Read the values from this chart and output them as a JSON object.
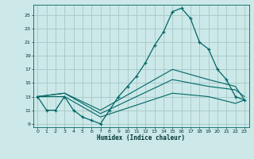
{
  "bg_color": "#cce8e8",
  "grid_color": "#aacccc",
  "line_color": "#006666",
  "xlabel": "Humidex (Indice chaleur)",
  "xlim": [
    -0.5,
    23.5
  ],
  "ylim": [
    8.5,
    26.5
  ],
  "yticks": [
    9,
    11,
    13,
    15,
    17,
    19,
    21,
    23,
    25
  ],
  "xticks": [
    0,
    1,
    2,
    3,
    4,
    5,
    6,
    7,
    8,
    9,
    10,
    11,
    12,
    13,
    14,
    15,
    16,
    17,
    18,
    19,
    20,
    21,
    22,
    23
  ],
  "series_main": {
    "x": [
      0,
      1,
      2,
      3,
      4,
      5,
      6,
      7,
      8,
      9,
      10,
      11,
      12,
      13,
      14,
      15,
      16,
      17,
      18,
      19,
      20,
      21,
      22,
      23
    ],
    "y": [
      13,
      11,
      11,
      13,
      11,
      10,
      9.5,
      9,
      11,
      13,
      14.5,
      16,
      18,
      20.5,
      22.5,
      25.5,
      26,
      24.5,
      21,
      20,
      17,
      15.5,
      13,
      12.5
    ]
  },
  "series_flat": [
    {
      "x": [
        0,
        3,
        7,
        15,
        19,
        22,
        23
      ],
      "y": [
        13,
        13,
        10,
        13.5,
        13,
        12,
        12.5
      ]
    },
    {
      "x": [
        0,
        3,
        7,
        15,
        19,
        22,
        23
      ],
      "y": [
        13,
        13.5,
        10.5,
        15.5,
        14.5,
        14,
        13
      ]
    },
    {
      "x": [
        0,
        3,
        7,
        15,
        19,
        22,
        23
      ],
      "y": [
        13,
        13.5,
        11,
        17,
        15.5,
        14.5,
        12.5
      ]
    }
  ]
}
